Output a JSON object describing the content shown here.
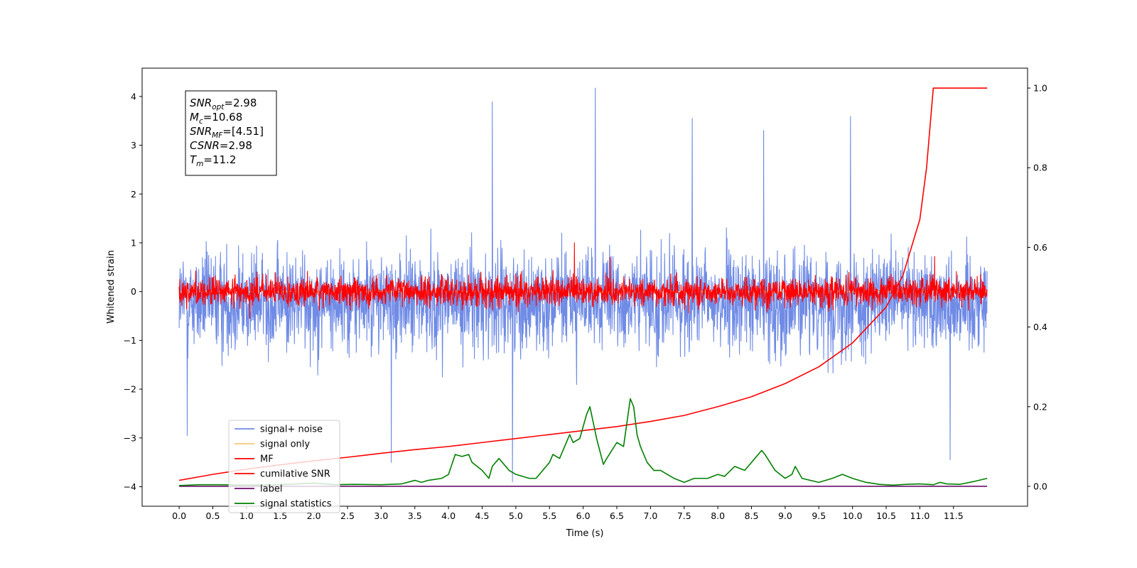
{
  "chart_data": {
    "type": "line",
    "title": "",
    "xlabel": "Time (s)",
    "ylabel": "Whitened strain",
    "y2label": "",
    "xlim": [
      -0.55,
      12.6
    ],
    "ylim": [
      -4.4,
      4.58
    ],
    "y2lim": [
      -0.05,
      1.05
    ],
    "x_ticks": [
      0.0,
      0.5,
      1.0,
      1.5,
      2.0,
      2.5,
      3.0,
      3.5,
      4.0,
      4.5,
      5.0,
      5.5,
      6.0,
      6.5,
      7.0,
      7.5,
      8.0,
      8.5,
      9.0,
      9.5,
      10.0,
      10.5,
      11.0,
      11.5
    ],
    "x_tick_labels": [
      "0.0",
      "0.5",
      "1.0",
      "1.5",
      "2.0",
      "2.5",
      "3.0",
      "3.5",
      "4.0",
      "4.5",
      "5.0",
      "5.5",
      "6.0",
      "6.5",
      "7.0",
      "7.5",
      "8.0",
      "8.5",
      "9.0",
      "9.5",
      "10.0",
      "10.5",
      "11.0",
      "11.5"
    ],
    "y_ticks": [
      4,
      3,
      2,
      1,
      0,
      -1,
      -2,
      -3,
      -4
    ],
    "y_tick_labels": [
      "4",
      "3",
      "2",
      "1",
      "0",
      "−1",
      "−2",
      "−3",
      "−4"
    ],
    "y2_ticks": [
      1.0,
      0.8,
      0.6,
      0.4,
      0.2,
      0.0
    ],
    "y2_tick_labels": [
      "1.0",
      "0.8",
      "0.6",
      "0.4",
      "0.2",
      "0.0"
    ],
    "grid": false,
    "legend_position": "lower-left",
    "series": [
      {
        "name": "signal+ noise",
        "color": "#6f8be6",
        "axis": "left",
        "kind": "noise",
        "x_range": [
          0.0,
          12.0
        ],
        "mean": -0.2,
        "envelope": 1.3,
        "peaks": [
          [
            6.18,
            4.17
          ],
          [
            4.65,
            3.89
          ],
          [
            9.97,
            3.59
          ],
          [
            7.62,
            3.55
          ],
          [
            4.95,
            -3.9
          ],
          [
            8.68,
            3.3
          ],
          [
            3.15,
            -3.5
          ],
          [
            11.45,
            -3.45
          ],
          [
            0.12,
            -2.95
          ]
        ]
      },
      {
        "name": "signal only",
        "color": "#f5c97a",
        "axis": "left",
        "kind": "flat",
        "x_range": [
          0.0,
          12.0
        ],
        "y": 0.0
      },
      {
        "name": "MF",
        "color": "#ff0000",
        "axis": "left",
        "kind": "noise",
        "x_range": [
          0.0,
          12.0
        ],
        "mean": 0.0,
        "envelope": 0.38,
        "peaks": [
          [
            5.87,
            1.0
          ],
          [
            11.22,
            0.72
          ],
          [
            6.4,
            0.7
          ],
          [
            1.05,
            -0.55
          ]
        ]
      },
      {
        "name": "cumilative SNR",
        "color": "#ff0000",
        "axis": "right",
        "x": [
          0.0,
          0.5,
          1.0,
          1.5,
          2.0,
          2.5,
          3.0,
          3.5,
          4.0,
          4.5,
          5.0,
          5.5,
          6.0,
          6.5,
          7.0,
          7.5,
          8.0,
          8.5,
          9.0,
          9.5,
          10.0,
          10.5,
          10.75,
          11.0,
          11.1,
          11.2,
          11.5,
          12.0
        ],
        "y": [
          0.015,
          0.03,
          0.043,
          0.054,
          0.064,
          0.073,
          0.083,
          0.092,
          0.1,
          0.11,
          0.12,
          0.13,
          0.14,
          0.15,
          0.163,
          0.178,
          0.2,
          0.225,
          0.258,
          0.3,
          0.36,
          0.45,
          0.53,
          0.67,
          0.8,
          1.0,
          1.0,
          1.0
        ]
      },
      {
        "name": "label",
        "color": "#6d0f6d",
        "axis": "right",
        "x": [
          0.0,
          12.0
        ],
        "y": [
          0.0,
          0.0
        ]
      },
      {
        "name": "signal statistics",
        "color": "#008000",
        "axis": "right",
        "x": [
          0.0,
          0.3,
          0.6,
          1.0,
          1.5,
          2.0,
          2.3,
          2.6,
          3.0,
          3.3,
          3.5,
          3.6,
          3.7,
          3.9,
          4.0,
          4.1,
          4.2,
          4.3,
          4.35,
          4.5,
          4.6,
          4.65,
          4.75,
          4.9,
          5.0,
          5.2,
          5.3,
          5.5,
          5.55,
          5.65,
          5.8,
          5.85,
          5.95,
          6.05,
          6.1,
          6.2,
          6.3,
          6.35,
          6.5,
          6.6,
          6.7,
          6.75,
          6.8,
          6.85,
          6.95,
          7.05,
          7.15,
          7.25,
          7.35,
          7.5,
          7.65,
          7.85,
          8.0,
          8.1,
          8.25,
          8.4,
          8.55,
          8.65,
          8.7,
          8.85,
          9.0,
          9.1,
          9.15,
          9.25,
          9.5,
          9.7,
          9.85,
          10.0,
          10.2,
          10.4,
          10.6,
          10.8,
          11.0,
          11.2,
          11.3,
          11.4,
          11.6,
          11.8,
          12.0
        ],
        "y": [
          0.002,
          0.004,
          0.004,
          0.003,
          0.004,
          0.008,
          0.004,
          0.005,
          0.004,
          0.006,
          0.015,
          0.01,
          0.015,
          0.02,
          0.03,
          0.08,
          0.075,
          0.08,
          0.06,
          0.04,
          0.02,
          0.05,
          0.07,
          0.04,
          0.03,
          0.02,
          0.02,
          0.06,
          0.08,
          0.07,
          0.13,
          0.11,
          0.12,
          0.18,
          0.2,
          0.12,
          0.055,
          0.07,
          0.11,
          0.1,
          0.22,
          0.2,
          0.13,
          0.1,
          0.06,
          0.04,
          0.04,
          0.03,
          0.02,
          0.01,
          0.02,
          0.02,
          0.03,
          0.025,
          0.05,
          0.04,
          0.07,
          0.09,
          0.08,
          0.04,
          0.02,
          0.03,
          0.05,
          0.02,
          0.01,
          0.02,
          0.03,
          0.02,
          0.01,
          0.005,
          0.003,
          0.005,
          0.006,
          0.004,
          0.01,
          0.006,
          0.005,
          0.012,
          0.02
        ]
      }
    ],
    "annotations": [
      {
        "base": "SNR",
        "sub": "opt",
        "value": "=2.98"
      },
      {
        "base": "M",
        "sub": "c",
        "value": "=10.68"
      },
      {
        "base": "SNR",
        "sub": "MF",
        "value": "=[4.51]"
      },
      {
        "base": "CSNR",
        "sub": "",
        "value": "=2.98"
      },
      {
        "base": "T",
        "sub": "m",
        "value": "=11.2"
      }
    ]
  }
}
